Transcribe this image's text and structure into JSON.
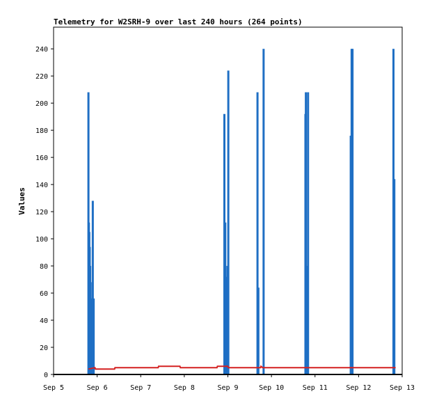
{
  "chart_data": {
    "type": "bar",
    "title": "Telemetry for W2SRH-9 over last 240 hours (264 points)",
    "xlabel": "",
    "ylabel": "Values",
    "x_ticks": [
      "Sep 5",
      "Sep 6",
      "Sep 7",
      "Sep 8",
      "Sep 9",
      "Sep 10",
      "Sep 11",
      "Sep 12",
      "Sep 13"
    ],
    "y_ticks": [
      "0",
      "20",
      "40",
      "60",
      "80",
      "100",
      "120",
      "140",
      "160",
      "180",
      "200",
      "220",
      "240"
    ],
    "xlim": [
      5,
      13
    ],
    "ylim": [
      0,
      256
    ],
    "grid": false,
    "colors": {
      "bars": "#1f6fc4",
      "line": "#d42020",
      "axis": "#000000"
    },
    "series": [
      {
        "values": [
          [
            5.8,
            208
          ],
          [
            5.81,
            112
          ],
          [
            5.82,
            105
          ],
          [
            5.83,
            94
          ],
          [
            5.84,
            80
          ],
          [
            5.85,
            68
          ],
          [
            5.86,
            56
          ],
          [
            5.87,
            44
          ],
          [
            5.88,
            31
          ],
          [
            5.89,
            19
          ],
          [
            5.9,
            128
          ],
          [
            5.92,
            56
          ],
          [
            8.92,
            192
          ],
          [
            8.94,
            112
          ],
          [
            8.96,
            24
          ],
          [
            8.97,
            56
          ],
          [
            8.98,
            72
          ],
          [
            8.99,
            80
          ],
          [
            9.01,
            224
          ],
          [
            9.68,
            208
          ],
          [
            9.7,
            64
          ],
          [
            9.82,
            240
          ],
          [
            10.78,
            192
          ],
          [
            10.79,
            208
          ],
          [
            10.82,
            80
          ],
          [
            10.84,
            208
          ],
          [
            11.82,
            176
          ],
          [
            11.84,
            240
          ],
          [
            11.86,
            240
          ],
          [
            12.8,
            240
          ],
          [
            12.82,
            144
          ]
        ]
      },
      {
        "type": "line",
        "values": [
          [
            5.8,
            4
          ],
          [
            5.95,
            5
          ],
          [
            5.96,
            4
          ],
          [
            6.4,
            4
          ],
          [
            6.41,
            5
          ],
          [
            7.4,
            5
          ],
          [
            7.41,
            6
          ],
          [
            7.9,
            6
          ],
          [
            7.91,
            5
          ],
          [
            8.2,
            5
          ],
          [
            8.21,
            5
          ],
          [
            8.75,
            5
          ],
          [
            8.76,
            6
          ],
          [
            9.0,
            6
          ],
          [
            9.01,
            5
          ],
          [
            9.75,
            5
          ],
          [
            9.76,
            6
          ],
          [
            9.8,
            5
          ],
          [
            12.85,
            5
          ]
        ]
      }
    ]
  }
}
